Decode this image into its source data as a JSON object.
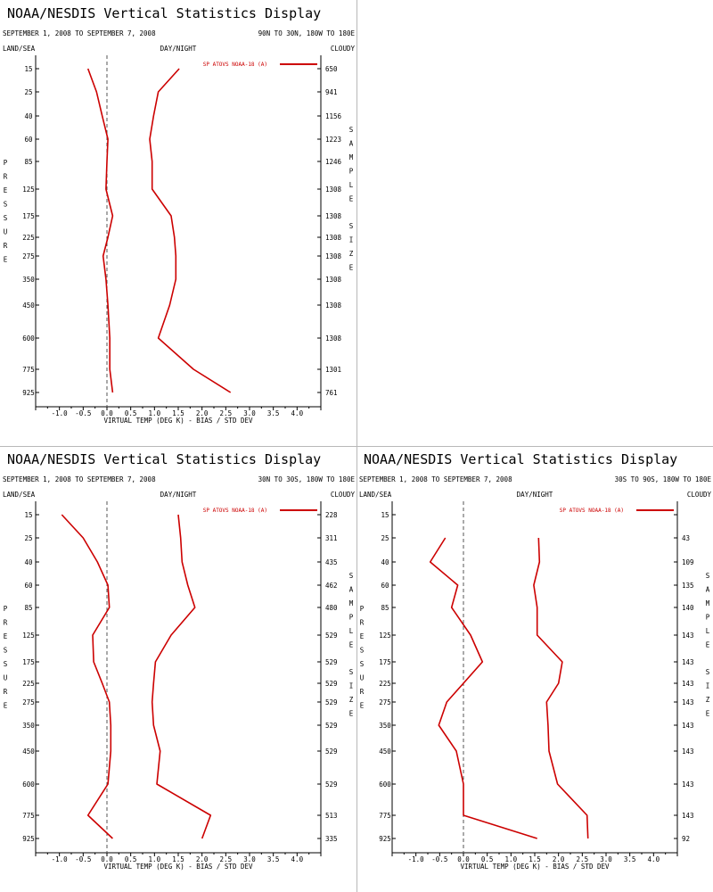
{
  "colors": {
    "series": "#cc0000",
    "axis": "#000000",
    "divider": "#b8b8b8",
    "zero_line": "#555555"
  },
  "chart_data": [
    {
      "type": "line",
      "title": "NOAA/NESDIS Vertical Statistics Display",
      "date_range": "SEPTEMBER 1, 2008 TO SEPTEMBER 7, 2008",
      "region": "90N TO 30N, 180W TO 180E",
      "land_sea": "LAND/SEA",
      "day_night": "DAY/NIGHT",
      "cloudy": "CLOUDY",
      "ylabel": "PRESSURE",
      "right_label": "SAMPLE SIZE",
      "xlabel": "VIRTUAL TEMP (DEG K) - BIAS / STD DEV",
      "legend": "SP ATOVS NOAA-18 (A)",
      "xlim": [
        -1.5,
        4.5
      ],
      "x_ticks": [
        "-1.0",
        "-0.5",
        "0.0",
        "0.5",
        "1.0",
        "1.5",
        "2.0",
        "2.5",
        "3.0",
        "3.5",
        "4.0"
      ],
      "pressure_levels": [
        "15",
        "25",
        "40",
        "60",
        "85",
        "125",
        "175",
        "225",
        "275",
        "350",
        "450",
        "600",
        "775",
        "925"
      ],
      "sample_size": [
        "650",
        "941",
        "1156",
        "1223",
        "1246",
        "1308",
        "1308",
        "1308",
        "1308",
        "1308",
        "1308",
        "1308",
        "1301",
        "761"
      ],
      "series": [
        {
          "role": "bias",
          "values": [
            -0.4,
            -0.22,
            -0.1,
            0.02,
            0.0,
            -0.02,
            0.12,
            0.02,
            -0.08,
            -0.02,
            0.02,
            0.06,
            0.06,
            0.12
          ]
        },
        {
          "role": "std_dev",
          "values": [
            1.52,
            1.08,
            0.98,
            0.9,
            0.95,
            0.95,
            1.35,
            1.42,
            1.45,
            1.45,
            1.32,
            1.08,
            1.82,
            2.6
          ]
        }
      ]
    },
    {
      "type": "line",
      "title": "NOAA/NESDIS Vertical Statistics Display",
      "date_range": "SEPTEMBER 1, 2008 TO SEPTEMBER 7, 2008",
      "region": "30N TO 30S, 180W TO 180E",
      "land_sea": "LAND/SEA",
      "day_night": "DAY/NIGHT",
      "cloudy": "CLOUDY",
      "ylabel": "PRESSURE",
      "right_label": "SAMPLE SIZE",
      "xlabel": "VIRTUAL TEMP (DEG K) - BIAS / STD DEV",
      "legend": "SP ATOVS NOAA-18 (A)",
      "xlim": [
        -1.5,
        4.5
      ],
      "x_ticks": [
        "-1.0",
        "-0.5",
        "0.0",
        "0.5",
        "1.0",
        "1.5",
        "2.0",
        "2.5",
        "3.0",
        "3.5",
        "4.0"
      ],
      "pressure_levels": [
        "15",
        "25",
        "40",
        "60",
        "85",
        "125",
        "175",
        "225",
        "275",
        "350",
        "450",
        "600",
        "775",
        "925"
      ],
      "sample_size": [
        "228",
        "311",
        "435",
        "462",
        "480",
        "529",
        "529",
        "529",
        "529",
        "529",
        "529",
        "529",
        "513",
        "335"
      ],
      "series": [
        {
          "role": "bias",
          "values": [
            -0.95,
            -0.5,
            -0.2,
            0.02,
            0.05,
            -0.3,
            -0.28,
            -0.1,
            0.05,
            0.08,
            0.08,
            0.02,
            -0.4,
            0.12
          ]
        },
        {
          "role": "std_dev",
          "values": [
            1.5,
            1.55,
            1.58,
            1.7,
            1.85,
            1.35,
            1.02,
            0.98,
            0.95,
            0.98,
            1.12,
            1.05,
            2.18,
            2.0
          ]
        }
      ]
    },
    {
      "type": "line",
      "title": "NOAA/NESDIS Vertical Statistics Display",
      "date_range": "SEPTEMBER 1, 2008 TO SEPTEMBER 7, 2008",
      "region": "30S TO 90S, 180W TO 180E",
      "land_sea": "LAND/SEA",
      "day_night": "DAY/NIGHT",
      "cloudy": "CLOUDY",
      "ylabel": "PRESSURE",
      "right_label": "SAMPLE SIZE",
      "xlabel": "VIRTUAL TEMP (DEG K) - BIAS / STD DEV",
      "legend": "SP ATOVS NOAA-18 (A)",
      "xlim": [
        -1.5,
        4.5
      ],
      "x_ticks": [
        "-1.0",
        "-0.5",
        "0.0",
        "0.5",
        "1.0",
        "1.5",
        "2.0",
        "2.5",
        "3.0",
        "3.5",
        "4.0"
      ],
      "pressure_levels": [
        "15",
        "25",
        "40",
        "60",
        "85",
        "125",
        "175",
        "225",
        "275",
        "350",
        "450",
        "600",
        "775",
        "925"
      ],
      "sample_size": [
        "",
        "43",
        "109",
        "135",
        "140",
        "143",
        "143",
        "143",
        "143",
        "143",
        "143",
        "143",
        "143",
        "92"
      ],
      "series": [
        {
          "role": "bias",
          "values": [
            null,
            -0.38,
            -0.7,
            -0.12,
            -0.25,
            0.15,
            0.4,
            0.0,
            -0.35,
            -0.52,
            -0.15,
            0.0,
            0.0,
            1.55
          ]
        },
        {
          "role": "std_dev",
          "values": [
            null,
            1.58,
            1.6,
            1.48,
            1.55,
            1.55,
            2.08,
            2.0,
            1.75,
            1.78,
            1.8,
            1.98,
            2.6,
            2.62
          ]
        }
      ]
    }
  ]
}
